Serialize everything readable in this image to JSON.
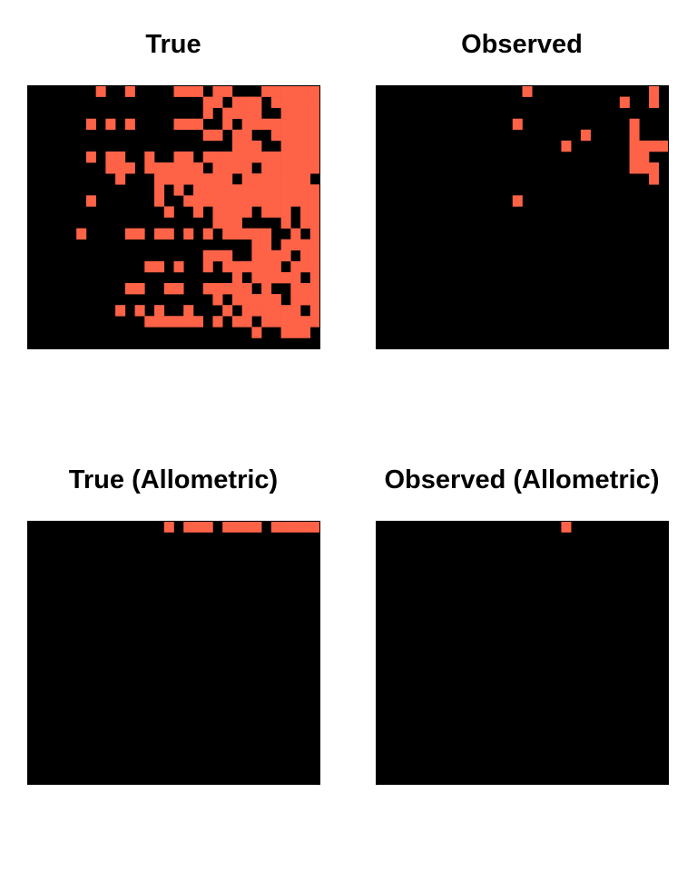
{
  "colors": {
    "absent": "#000000",
    "present": "#ff6347",
    "background": "#ffffff"
  },
  "chart_data": [
    {
      "type": "heatmap",
      "title": "True",
      "rows": 24,
      "cols": 30,
      "cell_values": [
        "0 = absent",
        "1 = present"
      ],
      "matrix": [
        "000000010010000111011000111111",
        "000000000000000000110111011111",
        "000000000000000000101111001111",
        "000000101010000111001011111111",
        "000000000000000000110110011111",
        "000000000000000000000111001111",
        "000000101100100110111111111111",
        "000000001110111111011110111111",
        "000000000100011111111011111110",
        "000000000000010101111111111111",
        "000000100000010011111111111111",
        "000000000000001001011110111011",
        "000000000000000000011100001011",
        "000001000011011010101111100101",
        "000000000000000000000001101111",
        "000000000000000000111001111011",
        "000000000000110100101111110111",
        "000000000000000000000101111101",
        "000000000011001100111110100111",
        "000000000000000000010111110111",
        "000000000101010010001011111101",
        "000000000000111111010110111111",
        "000000000000000000000001001110",
        "000000000000000000000000000000"
      ]
    },
    {
      "type": "heatmap",
      "title": "Observed",
      "rows": 24,
      "cols": 30,
      "cell_values": [
        "0 = absent",
        "1 = present"
      ],
      "matrix": [
        "000000000000000100000000000010",
        "000000000000000000000000010010",
        "000000000000000000000000000000",
        "000000000000001000000000001000",
        "000000000000000000000100001000",
        "000000000000000000010000001111",
        "000000000000000000000000001100",
        "000000000000000000000000001110",
        "000000000000000000000000000010",
        "000000000000000000000000000000",
        "000000000000001000000000000000",
        "000000000000000000000000000000",
        "000000000000000000000000000000",
        "000000000000000000000000000000",
        "000000000000000000000000000000",
        "000000000000000000000000000000",
        "000000000000000000000000000000",
        "000000000000000000000000000000",
        "000000000000000000000000000000",
        "000000000000000000000000000000",
        "000000000000000000000000000000",
        "000000000000000000000000000000",
        "000000000000000000000000000000",
        "000000000000000000000000000000"
      ]
    },
    {
      "type": "heatmap",
      "title": "True (Allometric)",
      "rows": 24,
      "cols": 30,
      "cell_values": [
        "0 = absent",
        "1 = present"
      ],
      "matrix": [
        "000000000000001011101111011111",
        "000000000000000000000000000000",
        "000000000000000000000000000000",
        "000000000000000000000000000000",
        "000000000000000000000000000000",
        "000000000000000000000000000000",
        "000000000000000000000000000000",
        "000000000000000000000000000000",
        "000000000000000000000000000000",
        "000000000000000000000000000000",
        "000000000000000000000000000000",
        "000000000000000000000000000000",
        "000000000000000000000000000000",
        "000000000000000000000000000000",
        "000000000000000000000000000000",
        "000000000000000000000000000000",
        "000000000000000000000000000000",
        "000000000000000000000000000000",
        "000000000000000000000000000000",
        "000000000000000000000000000000",
        "000000000000000000000000000000",
        "000000000000000000000000000000",
        "000000000000000000000000000000",
        "000000000000000000000000000000"
      ]
    },
    {
      "type": "heatmap",
      "title": "Observed (Allometric)",
      "rows": 24,
      "cols": 30,
      "cell_values": [
        "0 = absent",
        "1 = present"
      ],
      "matrix": [
        "000000000000000000010000000000",
        "000000000000000000000000000000",
        "000000000000000000000000000000",
        "000000000000000000000000000000",
        "000000000000000000000000000000",
        "000000000000000000000000000000",
        "000000000000000000000000000000",
        "000000000000000000000000000000",
        "000000000000000000000000000000",
        "000000000000000000000000000000",
        "000000000000000000000000000000",
        "000000000000000000000000000000",
        "000000000000000000000000000000",
        "000000000000000000000000000000",
        "000000000000000000000000000000",
        "000000000000000000000000000000",
        "000000000000000000000000000000",
        "000000000000000000000000000000",
        "000000000000000000000000000000",
        "000000000000000000000000000000",
        "000000000000000000000000000000",
        "000000000000000000000000000000",
        "000000000000000000000000000000",
        "000000000000000000000000000000"
      ]
    }
  ]
}
